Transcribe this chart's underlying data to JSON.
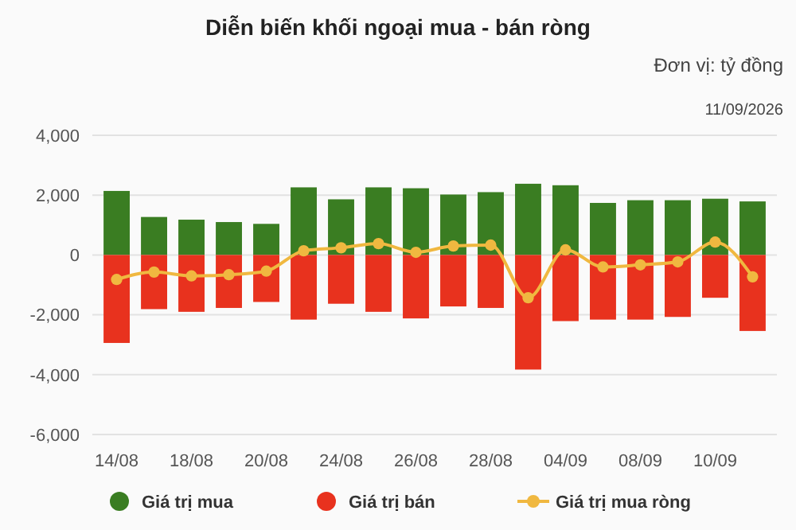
{
  "chart_data": {
    "type": "bar",
    "title": "Diễn biến khối ngoại mua - bán ròng",
    "annotations": [
      "Đơn vị: tỷ đồng",
      "11/09/2026"
    ],
    "categories": [
      "14/08",
      null,
      "18/08",
      null,
      "20/08",
      null,
      "24/08",
      null,
      "26/08",
      null,
      "28/08",
      null,
      "04/09",
      null,
      "08/09",
      null,
      "10/09",
      null
    ],
    "stacked": true,
    "series": [
      {
        "name": "Giá trị mua",
        "color": "#3a7d22",
        "values": [
          2140,
          1270,
          1180,
          1100,
          1040,
          2260,
          1860,
          2260,
          2230,
          2020,
          2100,
          2380,
          2330,
          1740,
          1830,
          1830,
          1880,
          1790
        ]
      },
      {
        "name": "Giá trị bán",
        "color": "#e8321e",
        "values": [
          -2940,
          -1810,
          -1900,
          -1770,
          -1570,
          -2160,
          -1630,
          -1900,
          -2120,
          -1720,
          -1770,
          -3830,
          -2210,
          -2160,
          -2160,
          -2070,
          -1430,
          -2540
        ]
      },
      {
        "name": "Giá trị mua ròng",
        "type": "line",
        "color": "#f0b840",
        "marker": "circle",
        "values": [
          -820,
          -570,
          -700,
          -660,
          -540,
          140,
          240,
          380,
          90,
          300,
          330,
          -1430,
          170,
          -400,
          -330,
          -230,
          430,
          -730
        ]
      }
    ],
    "ylim": [
      -6000,
      4000
    ],
    "yticks": [
      {
        "value": -6000,
        "label": "-6,000"
      },
      {
        "value": -4000,
        "label": "-4,000"
      },
      {
        "value": -2000,
        "label": "-2,000"
      },
      0,
      {
        "value": 2000,
        "label": "2,000"
      },
      {
        "value": 4000,
        "label": "4,000"
      }
    ],
    "grid": "y",
    "legend": "bottom"
  }
}
